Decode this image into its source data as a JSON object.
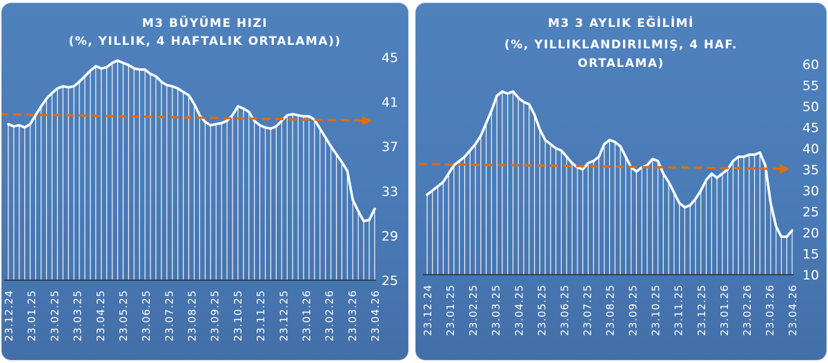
{
  "chart_data": [
    {
      "type": "area",
      "title": "M3 BÜYÜME HIZI",
      "subtitle": "(%, YILLIK, 4 HAFTALIK ORTALAMA))",
      "yticks": [
        "45",
        "41",
        "37",
        "33",
        "29",
        "25"
      ],
      "ylim": [
        25,
        45
      ],
      "xticks": [
        "23.12.24",
        "23.01.25",
        "23.02.25",
        "23.03.25",
        "23.04.25",
        "23.05.25",
        "23.06.25",
        "23.07.25",
        "23.08.25",
        "23.09.25",
        "23.10.25",
        "23.11.25",
        "23.12.25",
        "23.01.26",
        "23.02.26",
        "23.03.26",
        "23.04.26"
      ],
      "values": [
        39.0,
        38.8,
        38.9,
        38.7,
        39.0,
        39.8,
        40.6,
        41.3,
        41.8,
        42.2,
        42.4,
        42.3,
        42.4,
        42.8,
        43.3,
        43.8,
        44.2,
        44.0,
        44.1,
        44.5,
        44.7,
        44.5,
        44.3,
        44.0,
        43.9,
        43.9,
        43.5,
        43.3,
        42.8,
        42.5,
        42.4,
        42.2,
        41.9,
        41.6,
        40.8,
        39.8,
        39.2,
        38.9,
        39.0,
        39.1,
        39.3,
        39.8,
        40.6,
        40.4,
        40.1,
        39.3,
        38.9,
        38.7,
        38.6,
        38.8,
        39.3,
        39.8,
        39.9,
        39.8,
        39.7,
        39.7,
        39.4,
        38.6,
        37.8,
        37.0,
        36.3,
        35.6,
        34.8,
        32.2,
        31.2,
        30.3,
        30.4,
        31.4
      ],
      "trend": [
        39.9,
        39.3
      ],
      "colors": {
        "line": "#ffffff",
        "fill": "#ffffff",
        "trend": "#e36c09"
      }
    },
    {
      "type": "area",
      "title": "M3 3 AYLIK EĞİLİMİ",
      "subtitle_line1": "(%, YILLIKLANDIRILMIŞ, 4 HAF.",
      "subtitle_line2": "ORTALAMA)",
      "yticks": [
        "60",
        "55",
        "50",
        "45",
        "40",
        "35",
        "30",
        "25",
        "20",
        "15",
        "10"
      ],
      "ylim": [
        10,
        60
      ],
      "xticks": [
        "23.12.24",
        "23.01.25",
        "23.02.25",
        "23.03.25",
        "23.04.25",
        "23.05.25",
        "23.06.25",
        "23.07.25",
        "23.08.25",
        "23.09.25",
        "23.10.25",
        "23.11.25",
        "23.12.25",
        "23.01.26",
        "23.02.26",
        "23.03.26",
        "23.04.26"
      ],
      "values": [
        29,
        30,
        31,
        32,
        34,
        36,
        37,
        38,
        39.5,
        41,
        43,
        46,
        49,
        52.5,
        53.5,
        53,
        53.5,
        52,
        51,
        50.5,
        48,
        44.5,
        42,
        41,
        40,
        39.5,
        38,
        36.5,
        35.5,
        35,
        36.5,
        37,
        38,
        41,
        42,
        41.5,
        40.5,
        38,
        35.5,
        34.5,
        35.5,
        36,
        37.5,
        37,
        34,
        32,
        29.5,
        27,
        26,
        26.5,
        28,
        30,
        32.5,
        34,
        33,
        34,
        35,
        37,
        38,
        38,
        38.5,
        38.5,
        39,
        36,
        27,
        21.5,
        19,
        19,
        20.5
      ],
      "trend": [
        36.3,
        35.1
      ],
      "colors": {
        "line": "#ffffff",
        "fill": "#ffffff",
        "trend": "#e36c09"
      }
    }
  ]
}
